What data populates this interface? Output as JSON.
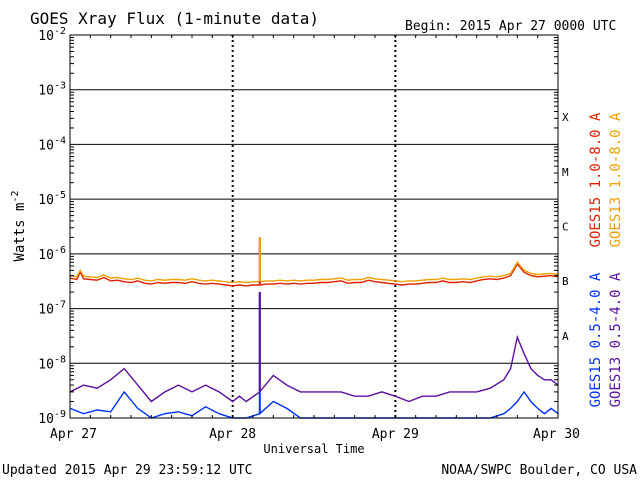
{
  "chart_data": {
    "type": "line",
    "title": "GOES Xray Flux (1-minute data)",
    "begin": "Begin:  2015 Apr 27 0000 UTC",
    "xlabel": "Universal Time",
    "ylabel": "Watts m",
    "ylabel_exp": "-2",
    "updated": "Updated 2015 Apr 29 23:59:12 UTC",
    "credit": "NOAA/SWPC Boulder, CO USA",
    "y_scale": "log",
    "ylim": [
      1e-09,
      0.01
    ],
    "xlim": [
      0,
      72
    ],
    "x_unit": "hours since Apr 27 0000 UTC",
    "x_ticks": [
      {
        "x": 0,
        "label": "Apr 27"
      },
      {
        "x": 24,
        "label": "Apr 28"
      },
      {
        "x": 48,
        "label": "Apr 29"
      },
      {
        "x": 72,
        "label": "Apr 30"
      }
    ],
    "y_ticks": [
      {
        "exp": "-9"
      },
      {
        "exp": "-8"
      },
      {
        "exp": "-7"
      },
      {
        "exp": "-6"
      },
      {
        "exp": "-5"
      },
      {
        "exp": "-4"
      },
      {
        "exp": "-3"
      },
      {
        "exp": "-2"
      }
    ],
    "flare_classes": [
      {
        "label": "A",
        "value": 1e-08
      },
      {
        "label": "B",
        "value": 1e-07
      },
      {
        "label": "C",
        "value": 1e-06
      },
      {
        "label": "M",
        "value": 1e-05
      },
      {
        "label": "X",
        "value": 0.0001
      }
    ],
    "grid": true,
    "legend_position": "right",
    "series": [
      {
        "name": "GOES15 1.0-8.0 A",
        "color": "#e02000",
        "x": [
          0,
          1,
          1.5,
          2,
          3,
          4,
          5,
          6,
          7,
          8,
          9,
          10,
          11,
          12,
          13,
          14,
          15,
          16,
          17,
          18,
          19,
          20,
          21,
          22,
          23,
          24,
          25,
          26,
          27,
          28,
          29,
          30,
          31,
          32,
          33,
          34,
          35,
          36,
          37,
          38,
          39,
          40,
          41,
          42,
          43,
          44,
          45,
          46,
          47,
          48,
          49,
          50,
          51,
          52,
          53,
          54,
          55,
          56,
          57,
          58,
          59,
          60,
          61,
          62,
          63,
          64,
          65,
          66,
          67,
          68,
          69,
          70,
          71,
          72
        ],
        "y": [
          3.6e-07,
          3.4e-07,
          4.6e-07,
          3.5e-07,
          3.4e-07,
          3.3e-07,
          3.7e-07,
          3.2e-07,
          3.3e-07,
          3.1e-07,
          3e-07,
          3.2e-07,
          2.9e-07,
          2.8e-07,
          3e-07,
          2.9e-07,
          3e-07,
          3e-07,
          2.9e-07,
          3.1e-07,
          2.9e-07,
          2.8e-07,
          2.9e-07,
          2.8e-07,
          2.7e-07,
          2.6e-07,
          2.7e-07,
          2.6e-07,
          2.7e-07,
          2.7e-07,
          2.8e-07,
          2.8e-07,
          2.9e-07,
          2.8e-07,
          2.9e-07,
          2.8e-07,
          2.9e-07,
          2.9e-07,
          3e-07,
          3e-07,
          3.1e-07,
          3.2e-07,
          2.9e-07,
          3e-07,
          3e-07,
          3.3e-07,
          3.1e-07,
          3e-07,
          2.9e-07,
          2.8e-07,
          2.7e-07,
          2.8e-07,
          2.8e-07,
          2.9e-07,
          3e-07,
          3e-07,
          3.2e-07,
          3e-07,
          3e-07,
          3.1e-07,
          3e-07,
          3.2e-07,
          3.4e-07,
          3.5e-07,
          3.4e-07,
          3.6e-07,
          4e-07,
          6.5e-07,
          4.6e-07,
          4e-07,
          3.8e-07,
          3.9e-07,
          4e-07,
          3.8e-07
        ]
      },
      {
        "name": "GOES13 1.0-8.0 A",
        "color": "#f0a000",
        "x": [
          0,
          1,
          1.5,
          2,
          3,
          4,
          5,
          6,
          7,
          8,
          9,
          10,
          11,
          12,
          13,
          14,
          15,
          16,
          17,
          18,
          19,
          20,
          21,
          22,
          23,
          24,
          25,
          26,
          27,
          28,
          29,
          30,
          31,
          32,
          33,
          34,
          35,
          36,
          37,
          38,
          39,
          40,
          41,
          42,
          43,
          44,
          45,
          46,
          47,
          48,
          49,
          50,
          51,
          52,
          53,
          54,
          55,
          56,
          57,
          58,
          59,
          60,
          61,
          62,
          63,
          64,
          65,
          66,
          67,
          68,
          69,
          70,
          71,
          72
        ],
        "y": [
          4e-07,
          3.8e-07,
          5e-07,
          3.9e-07,
          3.8e-07,
          3.7e-07,
          4.1e-07,
          3.6e-07,
          3.7e-07,
          3.5e-07,
          3.4e-07,
          3.6e-07,
          3.3e-07,
          3.2e-07,
          3.4e-07,
          3.3e-07,
          3.4e-07,
          3.4e-07,
          3.3e-07,
          3.5e-07,
          3.3e-07,
          3.2e-07,
          3.3e-07,
          3.2e-07,
          3.1e-07,
          3e-07,
          3.1e-07,
          3e-07,
          3.1e-07,
          3.1e-07,
          3.2e-07,
          3.2e-07,
          3.3e-07,
          3.2e-07,
          3.3e-07,
          3.2e-07,
          3.3e-07,
          3.3e-07,
          3.4e-07,
          3.4e-07,
          3.5e-07,
          3.6e-07,
          3.3e-07,
          3.4e-07,
          3.4e-07,
          3.7e-07,
          3.5e-07,
          3.4e-07,
          3.3e-07,
          3.2e-07,
          3.1e-07,
          3.2e-07,
          3.2e-07,
          3.3e-07,
          3.4e-07,
          3.4e-07,
          3.6e-07,
          3.4e-07,
          3.4e-07,
          3.5e-07,
          3.4e-07,
          3.6e-07,
          3.8e-07,
          3.9e-07,
          3.8e-07,
          4e-07,
          4.4e-07,
          7e-07,
          5e-07,
          4.4e-07,
          4.2e-07,
          4.3e-07,
          4.4e-07,
          4.2e-07
        ]
      },
      {
        "name": "GOES15 0.5-4.0 A",
        "color": "#0030ff",
        "x": [
          0,
          2,
          4,
          6,
          8,
          10,
          12,
          14,
          16,
          18,
          20,
          22,
          24,
          25,
          26,
          28,
          30,
          32,
          34,
          36,
          38,
          40,
          42,
          44,
          46,
          48,
          50,
          52,
          54,
          56,
          58,
          60,
          62,
          64,
          65,
          66,
          67,
          68,
          69,
          70,
          71,
          72
        ],
        "y": [
          1.5e-09,
          1.2e-09,
          1.4e-09,
          1.3e-09,
          3e-09,
          1.5e-09,
          1e-09,
          1.2e-09,
          1.3e-09,
          1.1e-09,
          1.6e-09,
          1.2e-09,
          1e-09,
          1e-09,
          1e-09,
          1.2e-09,
          2e-09,
          1.5e-09,
          1e-09,
          1e-09,
          1e-09,
          1e-09,
          1e-09,
          1e-09,
          1e-09,
          1e-09,
          1e-09,
          1e-09,
          1e-09,
          1e-09,
          1e-09,
          1e-09,
          1e-09,
          1.2e-09,
          1.5e-09,
          2e-09,
          3e-09,
          2e-09,
          1.5e-09,
          1.2e-09,
          1.5e-09,
          1.2e-09
        ]
      },
      {
        "name": "GOES13 0.5-4.0 A",
        "color": "#5a10a0",
        "x": [
          0,
          2,
          4,
          6,
          8,
          10,
          12,
          14,
          16,
          18,
          20,
          22,
          24,
          25,
          26,
          28,
          30,
          32,
          34,
          36,
          38,
          40,
          42,
          44,
          46,
          48,
          50,
          52,
          54,
          56,
          58,
          60,
          62,
          64,
          65,
          66,
          67,
          68,
          69,
          70,
          71,
          72
        ],
        "y": [
          3e-09,
          4e-09,
          3.5e-09,
          5e-09,
          8e-09,
          4e-09,
          2e-09,
          3e-09,
          4e-09,
          3e-09,
          4e-09,
          3e-09,
          2e-09,
          2.5e-09,
          2e-09,
          3e-09,
          6e-09,
          4e-09,
          3e-09,
          3e-09,
          3e-09,
          3e-09,
          2.5e-09,
          2.5e-09,
          3e-09,
          2.5e-09,
          2e-09,
          2.5e-09,
          2.5e-09,
          3e-09,
          3e-09,
          3e-09,
          3.5e-09,
          5e-09,
          8e-09,
          3e-08,
          1.5e-08,
          8e-09,
          6e-09,
          5e-09,
          5e-09,
          4e-09
        ]
      }
    ],
    "spikes": [
      {
        "series": 0,
        "x": 28.0,
        "y": 2e-06
      },
      {
        "series": 1,
        "x": 28.0,
        "y": 2e-06
      },
      {
        "series": 2,
        "x": 28.0,
        "y": 2e-07
      },
      {
        "series": 3,
        "x": 28.0,
        "y": 2e-07
      }
    ]
  }
}
